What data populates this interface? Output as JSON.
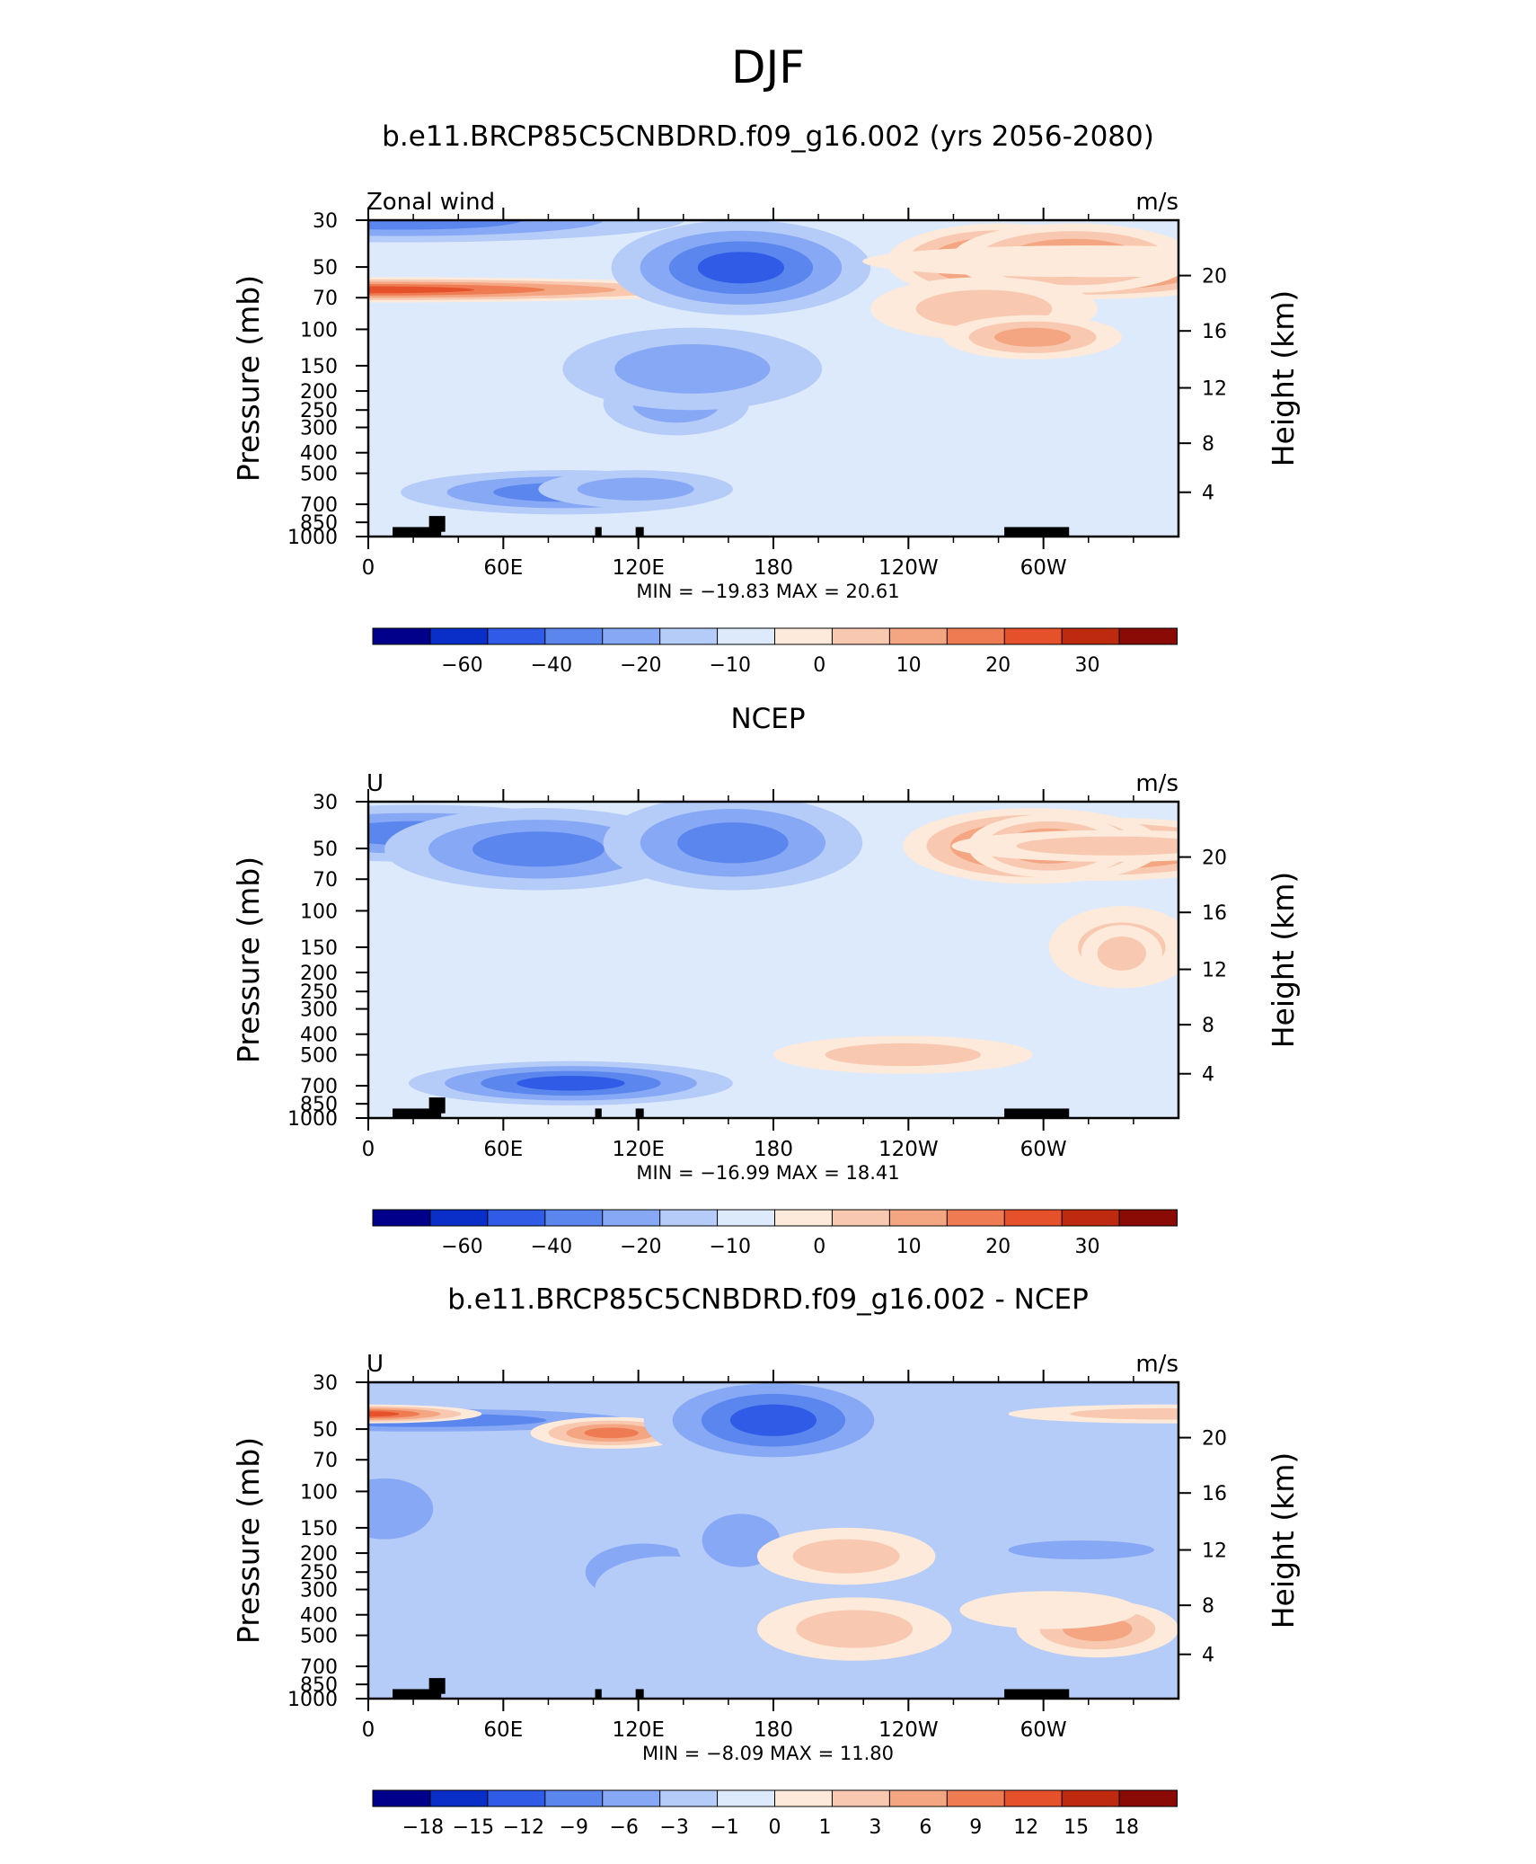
{
  "page_title": "DJF",
  "chart_data": [
    {
      "type": "heatmap",
      "title": "b.e11.BRCP85C5CNBDRD.f09_g16.002 (yrs 2056-2080)",
      "left_label": "Zonal wind",
      "units": "m/s",
      "ylabel": "Pressure  (mb)",
      "ylabel_right": "Height  (km)",
      "x_ticks": [
        "0",
        "60E",
        "120E",
        "180",
        "120W",
        "60W"
      ],
      "y_ticks": [
        "30",
        "50",
        "70",
        "100",
        "150",
        "200",
        "250",
        "300",
        "400",
        "500",
        "700",
        "850",
        "1000"
      ],
      "y_ticks_right": [
        "20",
        "16",
        "12",
        "8",
        "4"
      ],
      "stats": "MIN =  −19.83   MAX =   20.61",
      "colorbar_labels": [
        "−60",
        "−40",
        "−20",
        "−10",
        "0",
        "10",
        "20",
        "30"
      ]
    },
    {
      "type": "heatmap",
      "title": "NCEP",
      "left_label": "U",
      "units": "m/s",
      "ylabel": "Pressure  (mb)",
      "ylabel_right": "Height  (km)",
      "x_ticks": [
        "0",
        "60E",
        "120E",
        "180",
        "120W",
        "60W"
      ],
      "y_ticks": [
        "30",
        "50",
        "70",
        "100",
        "150",
        "200",
        "250",
        "300",
        "400",
        "500",
        "700",
        "850",
        "1000"
      ],
      "y_ticks_right": [
        "20",
        "16",
        "12",
        "8",
        "4"
      ],
      "stats": "MIN =  −16.99   MAX =   18.41",
      "colorbar_labels": [
        "−60",
        "−40",
        "−20",
        "−10",
        "0",
        "10",
        "20",
        "30"
      ]
    },
    {
      "type": "heatmap",
      "title": "b.e11.BRCP85C5CNBDRD.f09_g16.002 - NCEP",
      "left_label": "U",
      "units": "m/s",
      "ylabel": "Pressure  (mb)",
      "ylabel_right": "Height  (km)",
      "x_ticks": [
        "0",
        "60E",
        "120E",
        "180",
        "120W",
        "60W"
      ],
      "y_ticks": [
        "30",
        "50",
        "70",
        "100",
        "150",
        "200",
        "250",
        "300",
        "400",
        "500",
        "700",
        "850",
        "1000"
      ],
      "y_ticks_right": [
        "20",
        "16",
        "12",
        "8",
        "4"
      ],
      "stats": "MIN =   −8.09   MAX =   11.80",
      "colorbar_labels": [
        "−18",
        "−15",
        "−12",
        "−9",
        "−6",
        "−3",
        "−1",
        "0",
        "1",
        "3",
        "6",
        "9",
        "12",
        "15",
        "18"
      ]
    }
  ],
  "colors": {
    "bins": [
      "#00008B",
      "#0A2FC8",
      "#2F5BE6",
      "#5A86EE",
      "#86A8F5",
      "#B5CBF8",
      "#DDEAFC",
      "#FDEADA",
      "#F8C9B0",
      "#F4A581",
      "#EE7B52",
      "#E5512A",
      "#BE2A10",
      "#8A0A05"
    ]
  }
}
